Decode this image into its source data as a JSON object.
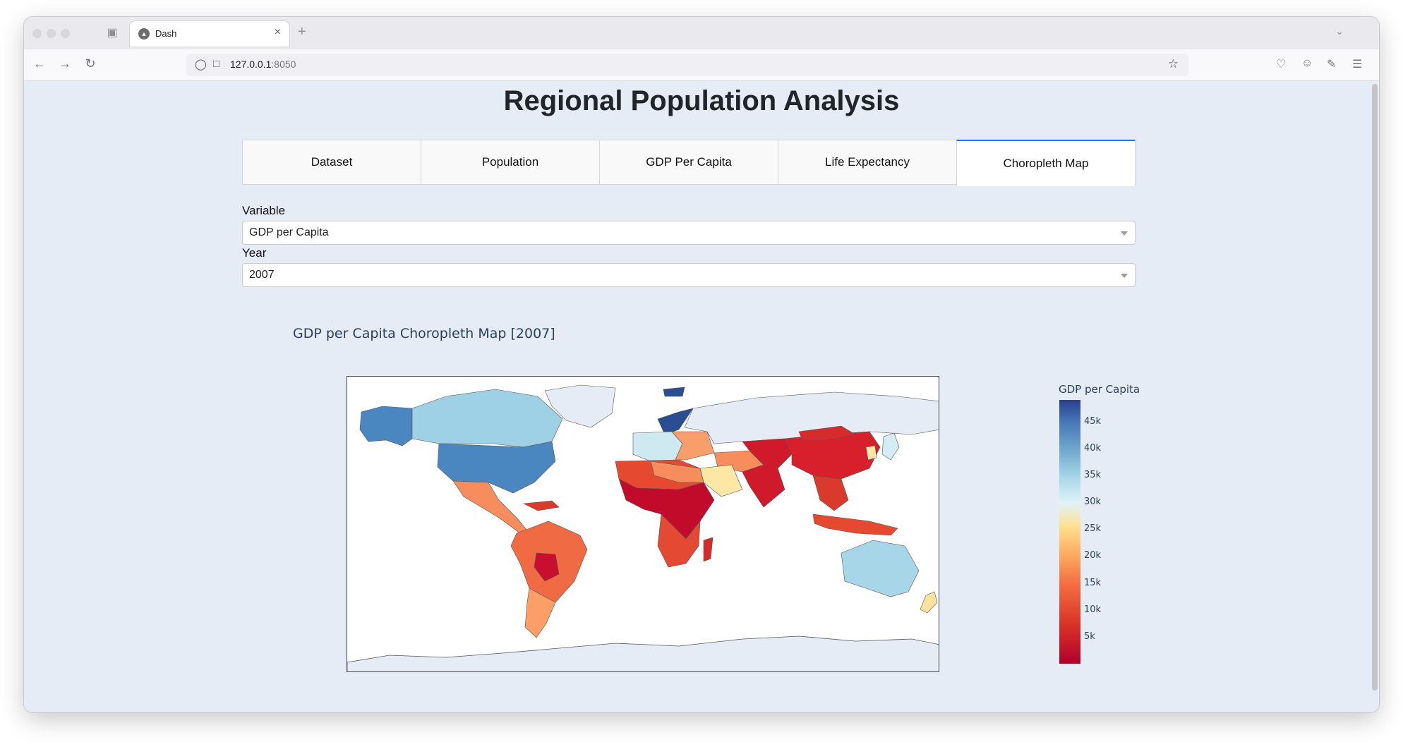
{
  "browser": {
    "tab_title": "Dash",
    "url_host": "127.0.0.1",
    "url_port": ":8050"
  },
  "page": {
    "title": "Regional Population Analysis"
  },
  "tabs": [
    {
      "label": "Dataset",
      "selected": false
    },
    {
      "label": "Population",
      "selected": false
    },
    {
      "label": "GDP Per Capita",
      "selected": false
    },
    {
      "label": "Life Expectancy",
      "selected": false
    },
    {
      "label": "Choropleth Map",
      "selected": true
    }
  ],
  "controls": {
    "variable_label": "Variable",
    "variable_value": "GDP per Capita",
    "year_label": "Year",
    "year_value": "2007"
  },
  "chart_data": {
    "type": "choropleth",
    "title": "GDP per Capita Choropleth Map [2007]",
    "colorbar_title": "GDP per Capita",
    "colorbar_ticks": [
      "45k",
      "40k",
      "35k",
      "30k",
      "25k",
      "20k",
      "15k",
      "10k",
      "5k"
    ],
    "colorscale": "RdYlBu",
    "range": [
      0,
      49000
    ],
    "regions": [
      {
        "name": "North America (USA)",
        "value": 42000
      },
      {
        "name": "Canada",
        "value": 36000
      },
      {
        "name": "Alaska",
        "value": 42000
      },
      {
        "name": "Greenland",
        "value": null
      },
      {
        "name": "Mexico & Central America",
        "value": 11000
      },
      {
        "name": "South America",
        "value": 9000
      },
      {
        "name": "Argentina",
        "value": 12500
      },
      {
        "name": "Western Europe",
        "value": 34000
      },
      {
        "name": "Norway",
        "value": 49000
      },
      {
        "name": "Eastern Europe",
        "value": 10000
      },
      {
        "name": "Russia",
        "value": null
      },
      {
        "name": "North Africa",
        "value": 7000
      },
      {
        "name": "Sub-Saharan Africa",
        "value": 1500
      },
      {
        "name": "Southern Africa",
        "value": 8000
      },
      {
        "name": "Middle East",
        "value": 12000
      },
      {
        "name": "Saudi Arabia",
        "value": 21000
      },
      {
        "name": "South & Central Asia",
        "value": 2500
      },
      {
        "name": "China",
        "value": 4900
      },
      {
        "name": "Mongolia",
        "value": 3000
      },
      {
        "name": "Japan",
        "value": 31000
      },
      {
        "name": "Korea",
        "value": 23000
      },
      {
        "name": "Southeast Asia",
        "value": 4000
      },
      {
        "name": "Australia",
        "value": 34000
      },
      {
        "name": "New Zealand",
        "value": 25000
      },
      {
        "name": "Antarctica",
        "value": null
      }
    ]
  }
}
